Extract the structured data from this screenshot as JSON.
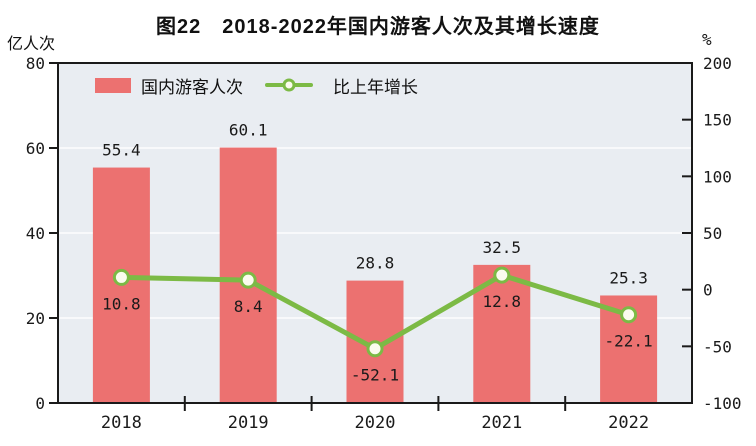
{
  "title": "图22　2018-2022年国内游客人次及其增长速度",
  "left_axis_unit": "亿人次",
  "right_axis_unit": "%",
  "legend": [
    {
      "label": "国内游客人次",
      "type": "bar"
    },
    {
      "label": "比上年增长",
      "type": "line"
    }
  ],
  "chart_data": {
    "type": "bar",
    "title": "图22　2018-2022年国内游客人次及其增长速度",
    "categories": [
      "2018",
      "2019",
      "2020",
      "2021",
      "2022"
    ],
    "series": [
      {
        "name": "国内游客人次",
        "type": "bar",
        "axis": "left",
        "values": [
          55.4,
          60.1,
          28.8,
          32.5,
          25.3
        ]
      },
      {
        "name": "比上年增长",
        "type": "line",
        "axis": "right",
        "values": [
          10.8,
          8.4,
          -52.1,
          12.8,
          -22.1
        ]
      }
    ],
    "left_axis": {
      "label": "亿人次",
      "min": 0,
      "max": 80,
      "ticks": [
        0,
        20,
        40,
        60,
        80
      ]
    },
    "right_axis": {
      "label": "%",
      "min": -100,
      "max": 200,
      "ticks": [
        -100,
        -50,
        0,
        50,
        100,
        150,
        200
      ]
    },
    "grid": true,
    "legend_position": "top-left-inside",
    "colors": {
      "bar": "#ec7170",
      "line": "#7cba45",
      "marker_fill": "#fbfcee",
      "plot_bg": "#e9edf2",
      "grid": "#f8f9fb",
      "axis": "#1a1a1a"
    }
  }
}
